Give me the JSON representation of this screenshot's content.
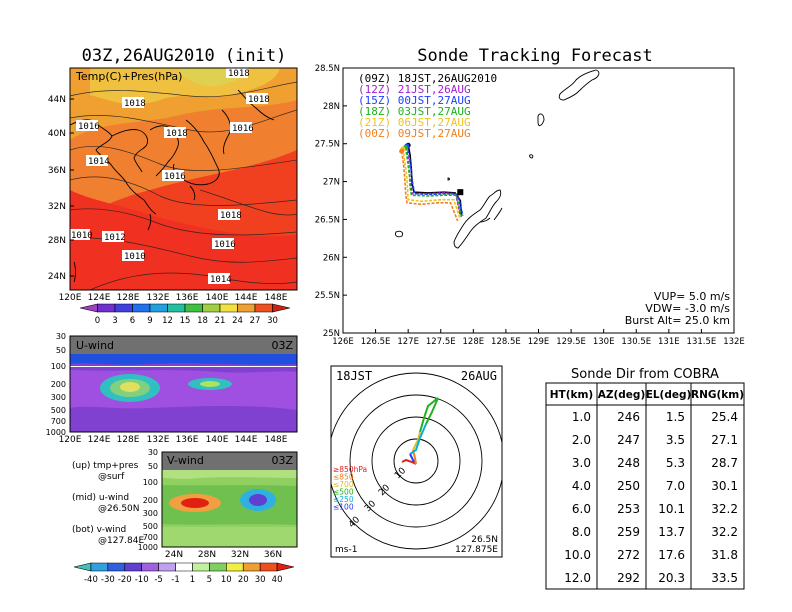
{
  "left_map": {
    "title": "03Z,26AUG2010 (init)",
    "overlay_label": "Temp(C)+Pres(hPa)",
    "lat_labels": [
      "44N",
      "40N",
      "36N",
      "32N",
      "28N",
      "24N"
    ],
    "lon_labels": [
      "120E",
      "124E",
      "128E",
      "132E",
      "136E",
      "140E",
      "144E",
      "148E"
    ],
    "isobars": [
      "1018",
      "1018",
      "1018",
      "1016",
      "1018",
      "1016",
      "1014",
      "1016",
      "1018",
      "1012",
      "1010",
      "1010",
      "1016",
      "1014"
    ],
    "colorbar_ticks": [
      "0",
      "3",
      "6",
      "9",
      "12",
      "15",
      "18",
      "21",
      "24",
      "27",
      "30"
    ]
  },
  "uwind": {
    "label": "U-wind",
    "time": "03Z",
    "y_ticks": [
      "30",
      "50",
      "100",
      "200",
      "300",
      "500",
      "700",
      "1000"
    ],
    "x_ticks": [
      "120E",
      "124E",
      "128E",
      "132E",
      "136E",
      "140E",
      "144E",
      "148E"
    ]
  },
  "vwind": {
    "label": "V-wind",
    "time": "03Z",
    "y_ticks": [
      "30",
      "50",
      "100",
      "200",
      "300",
      "500",
      "700",
      "1000"
    ],
    "x_ticks": [
      "24N",
      "28N",
      "32N",
      "36N"
    ],
    "colorbar_ticks": [
      "-40",
      "-30",
      "-20",
      "-10",
      "-5",
      "-1",
      "1",
      "5",
      "10",
      "20",
      "30",
      "40"
    ]
  },
  "legend_notes": [
    {
      "line1": "(up) tmp+pres",
      "line2": "@surf"
    },
    {
      "line1": "(mid) u-wind",
      "line2": "@26.50N"
    },
    {
      "line1": "(bot) v-wind",
      "line2": "@127.84E"
    }
  ],
  "tracking": {
    "title": "Sonde Tracking Forecast",
    "legend": [
      {
        "text": "(09Z) 18JST,26AUG2010",
        "color": "#000000"
      },
      {
        "text": "(12Z) 21JST,26AUG",
        "color": "#a020d0"
      },
      {
        "text": "(15Z) 00JST,27AUG",
        "color": "#2040ff"
      },
      {
        "text": "(18Z) 03JST,27AUG",
        "color": "#20b020"
      },
      {
        "text": "(21Z) 06JST,27AUG",
        "color": "#f0c020"
      },
      {
        "text": "(00Z) 09JST,27AUG",
        "color": "#f08020"
      }
    ],
    "params": [
      "VUP= 5.0 m/s",
      "VDW= -3.0 m/s",
      "Burst Alt= 25.0 km"
    ]
  },
  "polar": {
    "time_label": "18JST",
    "date_label": "26AUG",
    "ring_labels": [
      "10",
      "20",
      "30",
      "40"
    ],
    "unit": "ms-1",
    "location_lat": "26.5N",
    "location_lon": "127.875E",
    "levels": [
      {
        "text": "≥850hPa",
        "color": "#e02020"
      },
      {
        "text": "≤850",
        "color": "#f08020"
      },
      {
        "text": "≤700",
        "color": "#e0c020"
      },
      {
        "text": "≤500",
        "color": "#20b020"
      },
      {
        "text": "≤250",
        "color": "#00b0e0"
      },
      {
        "text": "≤100",
        "color": "#2040ff"
      }
    ]
  },
  "table": {
    "title": "Sonde Dir from COBRA",
    "headers": [
      "HT(km)",
      "AZ(deg)",
      "EL(deg)",
      "RNG(km)"
    ],
    "rows": [
      [
        "1.0",
        "246",
        "1.5",
        "25.4"
      ],
      [
        "2.0",
        "247",
        "3.5",
        "27.1"
      ],
      [
        "3.0",
        "248",
        "5.3",
        "28.7"
      ],
      [
        "4.0",
        "250",
        "7.0",
        "30.1"
      ],
      [
        "6.0",
        "253",
        "10.1",
        "32.2"
      ],
      [
        "8.0",
        "259",
        "13.7",
        "32.2"
      ],
      [
        "10.0",
        "272",
        "17.6",
        "31.8"
      ],
      [
        "12.0",
        "292",
        "20.3",
        "33.5"
      ]
    ]
  },
  "chart_data": [
    {
      "type": "heatmap",
      "title": "03Z,26AUG2010 (init)",
      "xlabel": "",
      "ylabel": "",
      "x_ticks": [
        "120E",
        "124E",
        "128E",
        "132E",
        "136E",
        "140E",
        "144E",
        "148E"
      ],
      "y_ticks": [
        "24N",
        "28N",
        "32N",
        "36N",
        "40N",
        "44N"
      ],
      "colorbar": [
        "0",
        "3",
        "6",
        "9",
        "12",
        "15",
        "18",
        "21",
        "24",
        "27",
        "30"
      ]
    },
    {
      "type": "line",
      "title": "Sonde Tracking Forecast",
      "xlim": [
        126,
        132
      ],
      "ylim": [
        25,
        28.5
      ],
      "x_ticks": [
        "126E",
        "126.5E",
        "127E",
        "127.5E",
        "128E",
        "128.5E",
        "129E",
        "129.5E",
        "130E",
        "130.5E",
        "131E",
        "131.5E",
        "132E"
      ],
      "y_ticks": [
        "25N",
        "25.5N",
        "26N",
        "26.5N",
        "27N",
        "27.5N",
        "28N",
        "28.5N"
      ],
      "series": [
        {
          "name": "(09Z) 18JST,26AUG2010",
          "color": "#000000",
          "x": [
            127.0,
            127.03,
            127.05,
            127.06,
            127.09,
            127.3,
            127.55,
            127.72,
            127.8,
            127.82
          ],
          "y": [
            27.48,
            27.35,
            27.15,
            26.97,
            26.86,
            26.85,
            26.86,
            26.85,
            26.75,
            26.55
          ]
        },
        {
          "name": "(12Z) 21JST,26AUG",
          "color": "#a020d0",
          "x": [
            126.97,
            127.0,
            127.02,
            127.04,
            127.06,
            127.3,
            127.55,
            127.73,
            127.8
          ],
          "y": [
            27.45,
            27.3,
            27.1,
            26.95,
            26.84,
            26.84,
            26.85,
            26.84,
            26.55
          ]
        },
        {
          "name": "(15Z) 00JST,27AUG",
          "color": "#2040ff",
          "x": [
            126.98,
            127.02,
            127.05,
            127.07,
            127.1,
            127.35,
            127.6,
            127.76,
            127.84
          ],
          "y": [
            27.47,
            27.32,
            27.12,
            26.97,
            26.84,
            26.83,
            26.84,
            26.83,
            26.55
          ]
        },
        {
          "name": "(18Z) 03JST,27AUG",
          "color": "#20b020",
          "x": [
            126.96,
            126.99,
            127.02,
            127.03,
            127.05,
            127.3,
            127.55,
            127.74,
            127.82
          ],
          "y": [
            27.45,
            27.28,
            27.08,
            26.92,
            26.82,
            26.81,
            26.82,
            26.82,
            26.52
          ]
        },
        {
          "name": "(21Z) 06JST,27AUG",
          "color": "#f0c020",
          "x": [
            126.92,
            126.95,
            126.98,
            126.99,
            127.0,
            127.2,
            127.5,
            127.7,
            127.8
          ],
          "y": [
            27.43,
            27.25,
            27.05,
            26.9,
            26.76,
            26.74,
            26.76,
            26.76,
            26.5
          ]
        },
        {
          "name": "(00Z) 09JST,27AUG",
          "color": "#f08020",
          "x": [
            126.9,
            126.93,
            126.95,
            126.96,
            126.98,
            127.2,
            127.45,
            127.65,
            127.76
          ],
          "y": [
            27.4,
            27.22,
            27.02,
            26.85,
            26.72,
            26.7,
            26.72,
            26.72,
            26.48
          ]
        }
      ]
    },
    {
      "type": "table",
      "title": "Sonde Dir from COBRA",
      "headers": [
        "HT(km)",
        "AZ(deg)",
        "EL(deg)",
        "RNG(km)"
      ],
      "rows": [
        [
          "1.0",
          "246",
          "1.5",
          "25.4"
        ],
        [
          "2.0",
          "247",
          "3.5",
          "27.1"
        ],
        [
          "3.0",
          "248",
          "5.3",
          "28.7"
        ],
        [
          "4.0",
          "250",
          "7.0",
          "30.1"
        ],
        [
          "6.0",
          "253",
          "10.1",
          "32.2"
        ],
        [
          "8.0",
          "259",
          "13.7",
          "32.2"
        ],
        [
          "10.0",
          "272",
          "17.6",
          "31.8"
        ],
        [
          "12.0",
          "292",
          "20.3",
          "33.5"
        ]
      ]
    }
  ]
}
